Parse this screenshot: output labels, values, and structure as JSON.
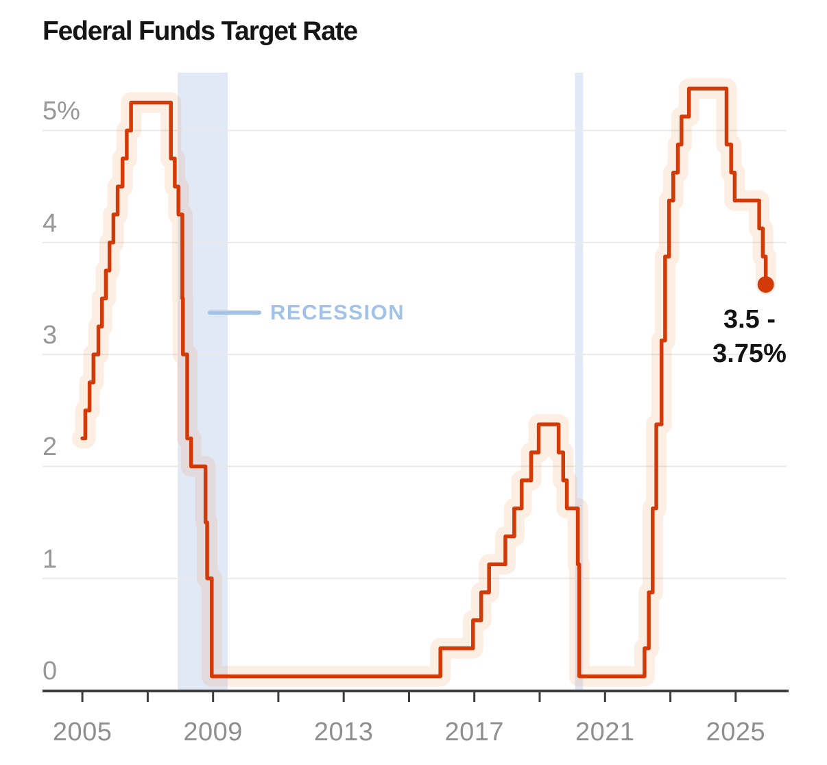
{
  "chart_data": {
    "type": "step-line",
    "title": "Federal Funds Target Rate",
    "unit": "percent",
    "xlim": [
      2003.78,
      2026.62
    ],
    "ylim": [
      0,
      5.517
    ],
    "grid": "horizontal-only",
    "y_ticks": [
      {
        "value": 5,
        "label": "5%"
      },
      {
        "value": 4,
        "label": "4"
      },
      {
        "value": 3,
        "label": "3"
      },
      {
        "value": 2,
        "label": "2"
      },
      {
        "value": 1,
        "label": "1"
      },
      {
        "value": 0,
        "label": "0"
      }
    ],
    "x_minor_tick_years": [
      2005,
      2007,
      2009,
      2011,
      2013,
      2015,
      2017,
      2019,
      2021,
      2023,
      2025
    ],
    "x_major_ticks": [
      {
        "year": 2005,
        "label": "2005"
      },
      {
        "year": 2009,
        "label": "2009"
      },
      {
        "year": 2013,
        "label": "2013"
      },
      {
        "year": 2017,
        "label": "2017"
      },
      {
        "year": 2021,
        "label": "2021"
      },
      {
        "year": 2025,
        "label": "2025"
      }
    ],
    "recession_label": "RECESSION",
    "recession_bands": [
      {
        "from": 2007.92,
        "to": 2009.45
      },
      {
        "from": 2020.08,
        "to": 2020.33
      }
    ],
    "current_value_label": "3.5 - 3.75%",
    "current_label_lines": [
      "3.5 -",
      "3.75%"
    ],
    "series": [
      {
        "name": "Federal funds target rate (midpoint of target range)",
        "points": [
          [
            2005.0,
            2.25
          ],
          [
            2005.09,
            2.5
          ],
          [
            2005.22,
            2.75
          ],
          [
            2005.34,
            3.0
          ],
          [
            2005.49,
            3.25
          ],
          [
            2005.6,
            3.5
          ],
          [
            2005.72,
            3.75
          ],
          [
            2005.83,
            4.0
          ],
          [
            2005.95,
            4.25
          ],
          [
            2006.08,
            4.5
          ],
          [
            2006.23,
            4.75
          ],
          [
            2006.36,
            5.0
          ],
          [
            2006.49,
            5.25
          ],
          [
            2007.71,
            4.75
          ],
          [
            2007.83,
            4.5
          ],
          [
            2007.94,
            4.25
          ],
          [
            2008.06,
            3.5
          ],
          [
            2008.08,
            3.0
          ],
          [
            2008.21,
            2.25
          ],
          [
            2008.33,
            2.0
          ],
          [
            2008.77,
            1.5
          ],
          [
            2008.82,
            1.0
          ],
          [
            2008.96,
            0.125
          ],
          [
            2015.96,
            0.375
          ],
          [
            2016.96,
            0.625
          ],
          [
            2017.21,
            0.875
          ],
          [
            2017.45,
            1.125
          ],
          [
            2017.95,
            1.375
          ],
          [
            2018.22,
            1.625
          ],
          [
            2018.45,
            1.875
          ],
          [
            2018.74,
            2.125
          ],
          [
            2018.97,
            2.375
          ],
          [
            2019.58,
            2.125
          ],
          [
            2019.72,
            1.875
          ],
          [
            2019.83,
            1.625
          ],
          [
            2020.17,
            1.125
          ],
          [
            2020.21,
            0.125
          ],
          [
            2022.21,
            0.375
          ],
          [
            2022.34,
            0.875
          ],
          [
            2022.46,
            1.625
          ],
          [
            2022.57,
            2.375
          ],
          [
            2022.73,
            3.125
          ],
          [
            2022.84,
            3.875
          ],
          [
            2022.96,
            4.375
          ],
          [
            2023.09,
            4.625
          ],
          [
            2023.23,
            4.875
          ],
          [
            2023.34,
            5.125
          ],
          [
            2023.57,
            5.375
          ],
          [
            2024.72,
            4.875
          ],
          [
            2024.86,
            4.625
          ],
          [
            2024.97,
            4.375
          ],
          [
            2025.72,
            4.125
          ],
          [
            2025.83,
            3.875
          ],
          [
            2025.92,
            3.625
          ]
        ]
      }
    ],
    "colors": {
      "line": "#d23b08",
      "dot": "#d23b08",
      "range_halo": "#ec7c2c",
      "range_halo_opacity": 0.13,
      "recession_band": "#e1e8f6",
      "recession_accent": "#a2c3e7",
      "grid": "#eaeaea",
      "axis": "#3d3d3d",
      "tick_label": "#8f8f8f",
      "title": "#151515",
      "end_label": "#131313"
    }
  }
}
